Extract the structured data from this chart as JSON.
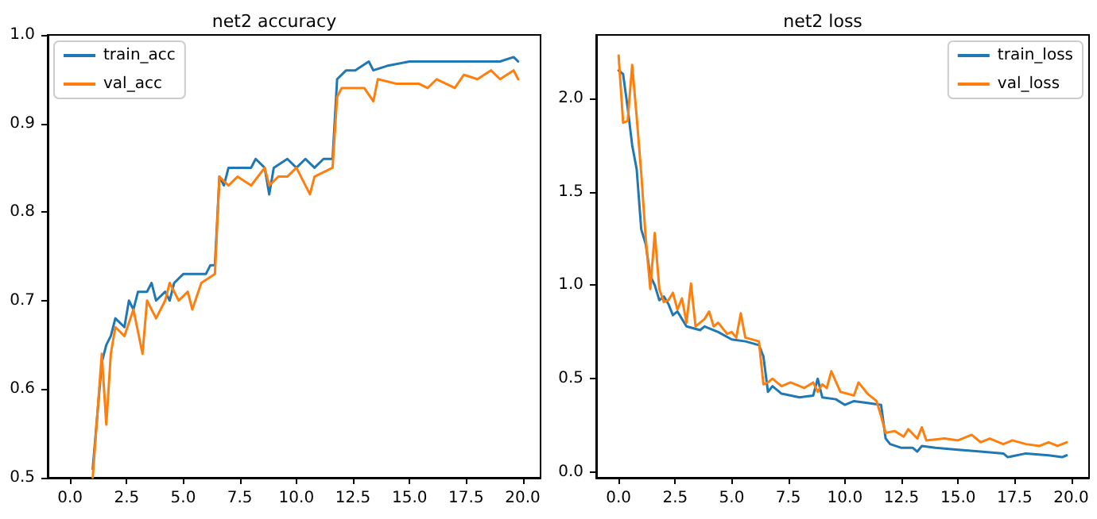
{
  "chart_data": [
    {
      "type": "line",
      "title": "net2 accuracy",
      "xlim": [
        -0.99,
        20.79
      ],
      "ylim": [
        0.5,
        1.0
      ],
      "xticks": [
        {
          "value": 0,
          "label": "0.0"
        },
        2.5,
        {
          "value": 5,
          "label": "5.0"
        },
        7.5,
        {
          "value": 10,
          "label": "10.0"
        },
        12.5,
        {
          "value": 15,
          "label": "15.0"
        },
        17.5,
        {
          "value": 20,
          "label": "20.0"
        }
      ],
      "yticks": [
        0.5,
        0.6,
        0.7,
        0.8,
        0.9,
        {
          "value": 1,
          "label": "1.0"
        }
      ],
      "grid": false,
      "legend": "top left",
      "marker": "none",
      "line_style": "solid",
      "series": [
        {
          "name": "train_acc",
          "color": "#1f77b4",
          "x": [
            1.0,
            1.4,
            1.6,
            1.8,
            2.0,
            2.4,
            2.6,
            2.8,
            3.0,
            3.4,
            3.6,
            3.8,
            4.2,
            4.4,
            4.6,
            5.0,
            5.4,
            6.0,
            6.2,
            6.4,
            6.6,
            6.8,
            7.0,
            7.4,
            8.0,
            8.2,
            8.6,
            8.8,
            9.0,
            9.6,
            10.0,
            10.4,
            10.8,
            11.2,
            11.6,
            11.8,
            12.2,
            12.6,
            13.2,
            13.4,
            14.0,
            15.0,
            16.0,
            17.0,
            18.0,
            19.0,
            19.6,
            19.8
          ],
          "values": [
            0.51,
            0.63,
            0.65,
            0.66,
            0.68,
            0.67,
            0.7,
            0.69,
            0.71,
            0.71,
            0.72,
            0.7,
            0.71,
            0.7,
            0.72,
            0.73,
            0.73,
            0.73,
            0.74,
            0.74,
            0.84,
            0.83,
            0.85,
            0.85,
            0.85,
            0.86,
            0.85,
            0.82,
            0.85,
            0.86,
            0.85,
            0.86,
            0.85,
            0.86,
            0.86,
            0.95,
            0.96,
            0.96,
            0.97,
            0.96,
            0.965,
            0.97,
            0.97,
            0.97,
            0.97,
            0.97,
            0.975,
            0.97
          ]
        },
        {
          "name": "val_acc",
          "color": "#ff7f0e",
          "x": [
            1.0,
            1.4,
            1.6,
            1.8,
            2.0,
            2.4,
            2.8,
            3.2,
            3.4,
            3.8,
            4.2,
            4.4,
            4.8,
            5.2,
            5.4,
            5.8,
            6.4,
            6.6,
            7.0,
            7.4,
            8.0,
            8.6,
            8.8,
            9.2,
            9.6,
            10.0,
            10.6,
            10.8,
            11.6,
            11.8,
            12.0,
            13.0,
            13.4,
            13.6,
            14.4,
            15.4,
            15.8,
            16.2,
            17.0,
            17.4,
            18.0,
            18.6,
            19.0,
            19.6,
            19.8
          ],
          "values": [
            0.5,
            0.64,
            0.56,
            0.64,
            0.67,
            0.66,
            0.69,
            0.64,
            0.7,
            0.68,
            0.7,
            0.72,
            0.7,
            0.71,
            0.69,
            0.72,
            0.73,
            0.84,
            0.83,
            0.84,
            0.83,
            0.85,
            0.83,
            0.84,
            0.84,
            0.85,
            0.82,
            0.84,
            0.85,
            0.93,
            0.94,
            0.94,
            0.925,
            0.95,
            0.945,
            0.945,
            0.94,
            0.95,
            0.94,
            0.955,
            0.95,
            0.96,
            0.95,
            0.96,
            0.95
          ]
        }
      ]
    },
    {
      "type": "line",
      "title": "net2 loss",
      "xlim": [
        -0.99,
        20.79
      ],
      "ylim": [
        -0.03,
        2.34
      ],
      "xticks": [
        {
          "value": 0,
          "label": "0.0"
        },
        2.5,
        {
          "value": 5,
          "label": "5.0"
        },
        7.5,
        {
          "value": 10,
          "label": "10.0"
        },
        12.5,
        {
          "value": 15,
          "label": "15.0"
        },
        17.5,
        {
          "value": 20,
          "label": "20.0"
        }
      ],
      "yticks": [
        {
          "value": 0,
          "label": "0.0"
        },
        0.5,
        {
          "value": 1,
          "label": "1.0"
        },
        1.5,
        {
          "value": 2,
          "label": "2.0"
        }
      ],
      "grid": false,
      "legend": "top right",
      "marker": "none",
      "line_style": "solid",
      "series": [
        {
          "name": "train_loss",
          "color": "#1f77b4",
          "x": [
            0,
            0.2,
            0.4,
            0.6,
            0.8,
            1.0,
            1.2,
            1.4,
            1.6,
            1.8,
            2.0,
            2.2,
            2.4,
            2.6,
            2.8,
            3.0,
            3.6,
            3.8,
            4.4,
            5.0,
            5.6,
            6.2,
            6.4,
            6.6,
            6.8,
            7.2,
            8.0,
            8.6,
            8.8,
            9.0,
            9.6,
            10.0,
            10.4,
            11.0,
            11.6,
            11.8,
            12.0,
            12.5,
            13.0,
            13.2,
            13.4,
            14.0,
            15.0,
            16.0,
            17.0,
            17.2,
            18.0,
            19.0,
            19.6,
            19.8
          ],
          "values": [
            2.15,
            2.13,
            1.95,
            1.75,
            1.62,
            1.3,
            1.22,
            1.05,
            1.0,
            0.92,
            0.94,
            0.9,
            0.84,
            0.86,
            0.82,
            0.78,
            0.76,
            0.78,
            0.75,
            0.71,
            0.7,
            0.68,
            0.62,
            0.43,
            0.46,
            0.42,
            0.4,
            0.41,
            0.5,
            0.4,
            0.39,
            0.36,
            0.38,
            0.37,
            0.36,
            0.18,
            0.15,
            0.13,
            0.13,
            0.11,
            0.14,
            0.13,
            0.12,
            0.11,
            0.1,
            0.08,
            0.1,
            0.09,
            0.08,
            0.09
          ]
        },
        {
          "name": "val_loss",
          "color": "#ff7f0e",
          "x": [
            0,
            0.2,
            0.4,
            0.6,
            0.8,
            1.0,
            1.2,
            1.4,
            1.6,
            1.8,
            2.0,
            2.2,
            2.4,
            2.6,
            2.8,
            3.0,
            3.2,
            3.4,
            3.8,
            4.0,
            4.2,
            4.4,
            4.8,
            5.0,
            5.2,
            5.4,
            5.6,
            6.2,
            6.4,
            6.6,
            6.8,
            7.2,
            7.6,
            8.2,
            8.6,
            8.8,
            9.0,
            9.2,
            9.4,
            9.8,
            10.4,
            10.6,
            11.0,
            11.4,
            11.6,
            11.8,
            12.2,
            12.6,
            12.8,
            13.2,
            13.4,
            13.6,
            14.4,
            15.0,
            15.6,
            16.0,
            16.4,
            17.0,
            17.4,
            18.0,
            18.6,
            19.0,
            19.4,
            19.8
          ],
          "values": [
            2.23,
            1.87,
            1.88,
            2.18,
            1.9,
            1.6,
            1.25,
            0.98,
            1.28,
            0.98,
            0.91,
            0.92,
            0.96,
            0.87,
            0.93,
            0.8,
            1.01,
            0.78,
            0.82,
            0.86,
            0.78,
            0.8,
            0.74,
            0.75,
            0.72,
            0.85,
            0.72,
            0.7,
            0.47,
            0.48,
            0.5,
            0.46,
            0.48,
            0.45,
            0.48,
            0.43,
            0.47,
            0.45,
            0.54,
            0.43,
            0.41,
            0.48,
            0.42,
            0.38,
            0.3,
            0.21,
            0.22,
            0.19,
            0.23,
            0.18,
            0.24,
            0.17,
            0.18,
            0.17,
            0.2,
            0.16,
            0.18,
            0.15,
            0.17,
            0.15,
            0.14,
            0.16,
            0.14,
            0.16
          ]
        }
      ]
    }
  ]
}
